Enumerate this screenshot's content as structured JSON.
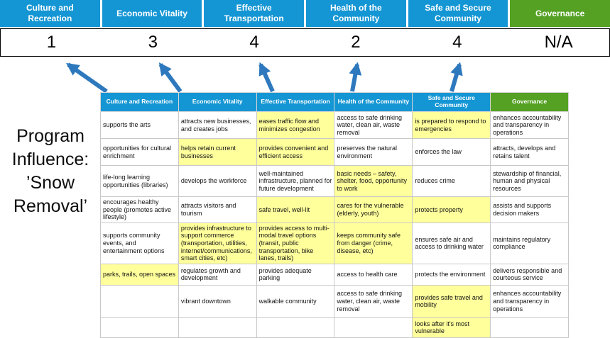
{
  "title": "Program Influence: ’Snow Removal’",
  "colors": {
    "header_blue": "#1596D4",
    "header_green": "#54A123",
    "highlight_yellow": "#FFFF9C",
    "arrow_blue": "#2E79BE"
  },
  "top": {
    "columns": [
      {
        "label": "Culture and Recreation",
        "score": "1"
      },
      {
        "label": "Economic Vitality",
        "score": "3"
      },
      {
        "label": "Effective Transportation",
        "score": "4"
      },
      {
        "label": "Health of the Community",
        "score": "2"
      },
      {
        "label": "Safe and Secure Community",
        "score": "4"
      },
      {
        "label": "Governance",
        "score": "N/A"
      }
    ]
  },
  "table": {
    "headers": [
      {
        "label": "Culture and Recreation",
        "color": "blue"
      },
      {
        "label": "Economic Vitality",
        "color": "blue"
      },
      {
        "label": "Effective Transportation",
        "color": "blue"
      },
      {
        "label": "Health of the Community",
        "color": "blue"
      },
      {
        "label": "Safe and Secure Community",
        "color": "blue"
      },
      {
        "label": "Governance",
        "color": "green"
      }
    ],
    "rows": [
      [
        {
          "text": "supports the arts",
          "hl": false
        },
        {
          "text": "attracts new businesses, and creates jobs",
          "hl": false
        },
        {
          "text": "eases traffic flow and minimizes congestion",
          "hl": true
        },
        {
          "text": "access to safe drinking water, clean air, waste removal",
          "hl": false
        },
        {
          "text": "is prepared to respond to emergencies",
          "hl": true
        },
        {
          "text": "enhances accountability and transparency in operations",
          "hl": false
        }
      ],
      [
        {
          "text": "opportunities for cultural enrichment",
          "hl": false
        },
        {
          "text": "helps retain current businesses",
          "hl": true
        },
        {
          "text": "provides convenient and efficient access",
          "hl": true
        },
        {
          "text": "preserves the natural environment",
          "hl": false
        },
        {
          "text": "enforces the law",
          "hl": false
        },
        {
          "text": "attracts, develops and retains talent",
          "hl": false
        }
      ],
      [
        {
          "text": "life-long learning opportunities (libraries)",
          "hl": false
        },
        {
          "text": "develops the workforce",
          "hl": false
        },
        {
          "text": "well-maintained infrastructure, planned for future development",
          "hl": false
        },
        {
          "text": "basic needs – safety, shelter, food, opportunity to work",
          "hl": true
        },
        {
          "text": "reduces crime",
          "hl": false
        },
        {
          "text": "stewardship of financial, human and physical resources",
          "hl": false
        }
      ],
      [
        {
          "text": "encourages healthy people (promotes active lifestyle)",
          "hl": false
        },
        {
          "text": "attracts visitors and tourism",
          "hl": false
        },
        {
          "text": "safe travel, well-lit",
          "hl": true
        },
        {
          "text": "cares for the vulnerable (elderly, youth)",
          "hl": true
        },
        {
          "text": "protects property",
          "hl": true
        },
        {
          "text": "assists and supports decision makers",
          "hl": false
        }
      ],
      [
        {
          "text": "supports community events, and entertainment options",
          "hl": false
        },
        {
          "text": "provides infrastructure to support commerce (transportation, utilities, internet/communications, smart cities, etc)",
          "hl": true
        },
        {
          "text": "provides access to multi-modal travel options (transit, public transportation, bike lanes, trails)",
          "hl": true
        },
        {
          "text": "keeps community safe from danger (crime, disease, etc)",
          "hl": true
        },
        {
          "text": "ensures safe air and access to drinking water",
          "hl": false
        },
        {
          "text": "maintains regulatory compliance",
          "hl": false
        }
      ],
      [
        {
          "text": "parks, trails, open spaces",
          "hl": true
        },
        {
          "text": "regulates growth and development",
          "hl": false
        },
        {
          "text": "provides adequate parking",
          "hl": false
        },
        {
          "text": "access to health care",
          "hl": false
        },
        {
          "text": "protects the environment",
          "hl": false
        },
        {
          "text": "delivers responsible and courteous service",
          "hl": false
        }
      ],
      [
        {
          "text": "",
          "hl": false
        },
        {
          "text": "vibrant downtown",
          "hl": false
        },
        {
          "text": "walkable community",
          "hl": false
        },
        {
          "text": "access to safe drinking water, clean air, waste removal",
          "hl": false
        },
        {
          "text": "provides safe travel and mobility",
          "hl": true
        },
        {
          "text": "enhances accountability and transparency in operations",
          "hl": false
        }
      ],
      [
        {
          "text": "",
          "hl": false
        },
        {
          "text": "",
          "hl": false
        },
        {
          "text": "",
          "hl": false
        },
        {
          "text": "",
          "hl": false
        },
        {
          "text": "looks after it's most vulnerable",
          "hl": true
        },
        {
          "text": "",
          "hl": false
        }
      ]
    ]
  }
}
